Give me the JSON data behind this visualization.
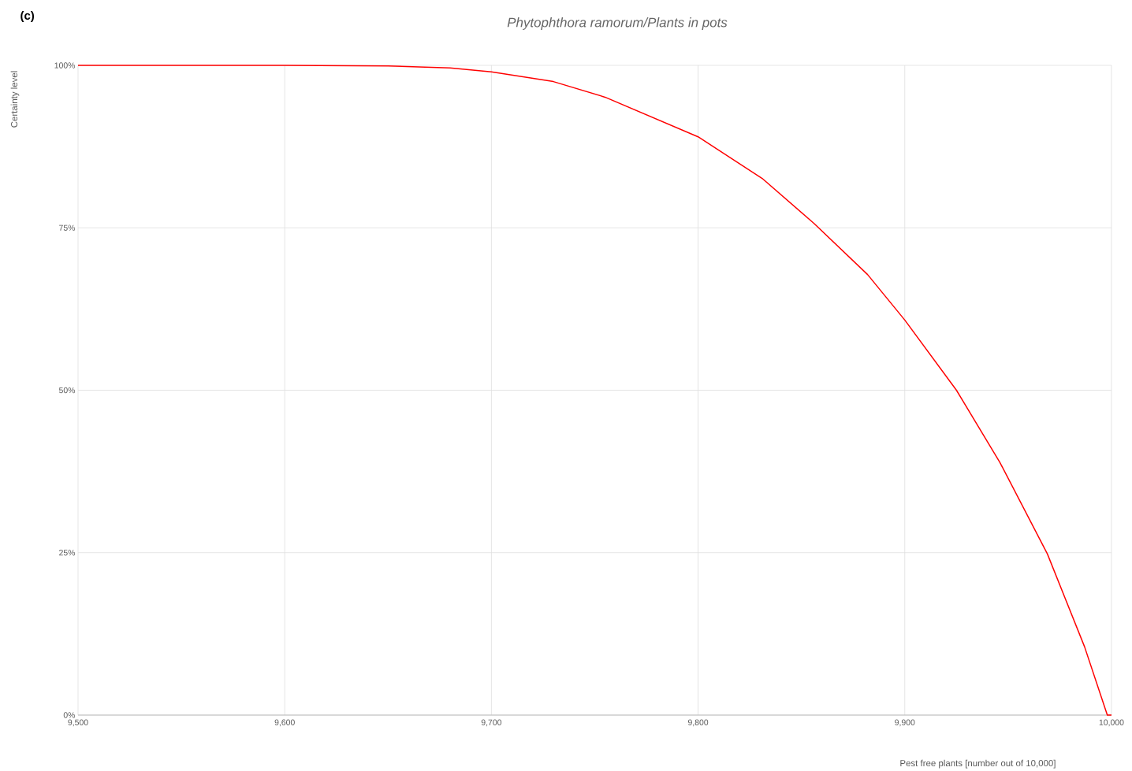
{
  "chart_data": {
    "type": "line",
    "title": "*Phytophthora ramorum/Plants in pots*",
    "xlabel": "Pest free plants [number out of 10,000]",
    "ylabel": "Certainty level",
    "annotations": [
      "**(c)**"
    ],
    "x": [
      9500,
      9600,
      9650,
      9680,
      9700,
      9730,
      9755,
      9800,
      9831,
      9856,
      9882,
      9900,
      9925,
      9946,
      9969,
      9987,
      9998,
      10000
    ],
    "series": [
      {
        "color": "#ff0000",
        "values": [
          100,
          100,
          99.9,
          99.6,
          99.0,
          97.5,
          95.1,
          89.0,
          82.6,
          75.7,
          67.8,
          60.8,
          50.0,
          38.9,
          24.8,
          10.5,
          0,
          0
        ]
      }
    ],
    "xlim": [
      9500,
      10000
    ],
    "ylim": [
      0,
      100
    ],
    "xticks": [
      {
        "value": 9500,
        "label": "9,500"
      },
      {
        "value": 9600,
        "label": "9,600"
      },
      {
        "value": 9700,
        "label": "9,700"
      },
      {
        "value": 9800,
        "label": "9,800"
      },
      {
        "value": 9900,
        "label": "9,900"
      },
      {
        "value": 10000,
        "label": "10,000"
      }
    ],
    "yticks": [
      {
        "value": 0,
        "label": "0%"
      },
      {
        "value": 25,
        "label": "25%"
      },
      {
        "value": 50,
        "label": "50%"
      },
      {
        "value": 75,
        "label": "75%"
      },
      {
        "value": 100,
        "label": "100%"
      }
    ],
    "grid": true,
    "legend": false,
    "marker": "none",
    "line_style": "solid"
  }
}
